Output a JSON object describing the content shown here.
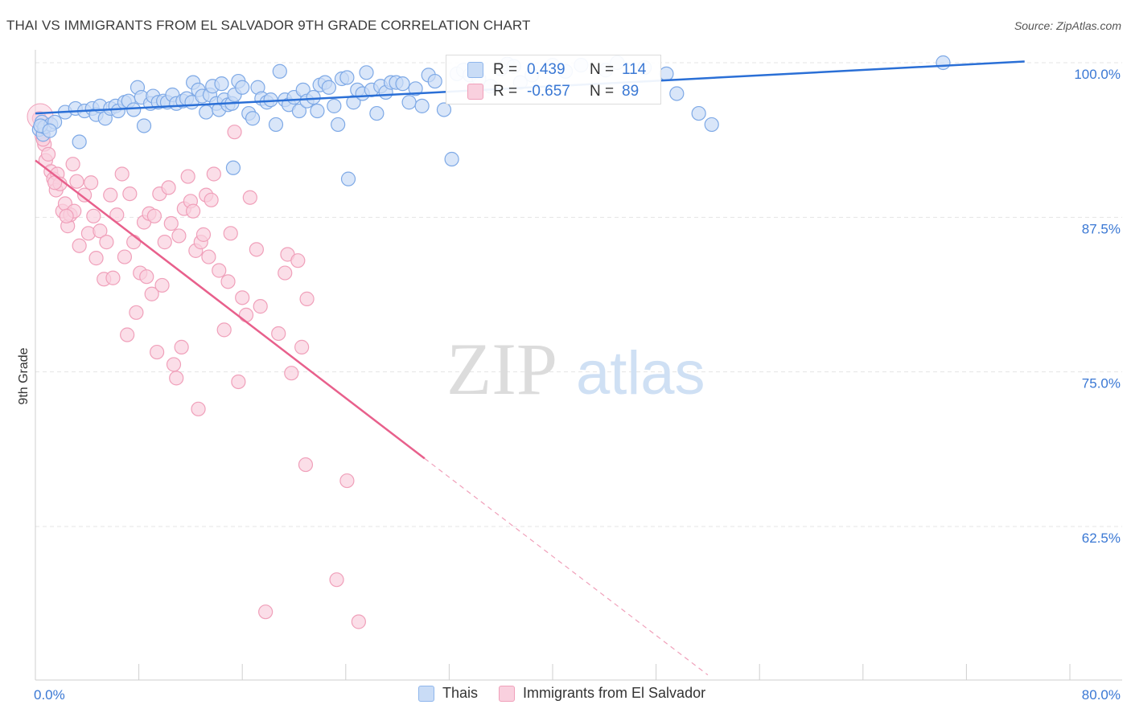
{
  "title": "THAI VS IMMIGRANTS FROM EL SALVADOR 9TH GRADE CORRELATION CHART",
  "source": "Source: ZipAtlas.com",
  "watermark": {
    "zip": "ZIP",
    "atlas": "atlas"
  },
  "stats": {
    "r_label": "R =",
    "n_label": "N =",
    "rows": [
      {
        "r": "0.439",
        "n": "114",
        "color": "#8fb6ec",
        "fill": "#c9dcf6",
        "text_color": "#3a78d4"
      },
      {
        "r": "-0.657",
        "n": "89",
        "color": "#f0a0ba",
        "fill": "#f9d0de",
        "text_color": "#3a78d4"
      }
    ]
  },
  "legend": [
    {
      "name": "Thais",
      "fill": "#c9dcf6",
      "stroke": "#8fb6ec"
    },
    {
      "name": "Immigrants from El Salvador",
      "fill": "#f9d0de",
      "stroke": "#f0a0ba"
    }
  ],
  "chart_data": {
    "type": "scatter",
    "title": "THAI VS IMMIGRANTS FROM EL SALVADOR 9TH GRADE CORRELATION CHART",
    "xlabel": "",
    "ylabel": "9th Grade",
    "xlim": [
      0,
      80
    ],
    "ylim": [
      50,
      101
    ],
    "x_tick_labels": [
      {
        "value": 0,
        "label": "0.0%"
      },
      {
        "value": 80,
        "label": "80.0%"
      }
    ],
    "y_tick_labels": [
      {
        "value": 100,
        "label": "100.0%"
      },
      {
        "value": 87.5,
        "label": "87.5%"
      },
      {
        "value": 75,
        "label": "75.0%"
      },
      {
        "value": 62.5,
        "label": "62.5%"
      }
    ],
    "grid": true,
    "legend_position": "bottom",
    "series": [
      {
        "name": "Thais",
        "color": "#6fa0e6",
        "fill": "#c9dcf6",
        "trend": {
          "x": [
            0,
            76.5
          ],
          "y": [
            95.9,
            100.1
          ],
          "color": "#2a6fd6"
        },
        "points": [
          [
            0.3,
            94.6
          ],
          [
            0.5,
            95.2
          ],
          [
            0.6,
            94.2
          ],
          [
            0.7,
            94.8
          ],
          [
            1.2,
            95.0
          ],
          [
            1.5,
            95.2
          ],
          [
            2.3,
            96.0
          ],
          [
            3.1,
            96.3
          ],
          [
            3.4,
            93.6
          ],
          [
            3.8,
            96.1
          ],
          [
            4.4,
            96.3
          ],
          [
            4.7,
            95.8
          ],
          [
            5.0,
            96.5
          ],
          [
            5.4,
            95.5
          ],
          [
            5.8,
            96.3
          ],
          [
            6.2,
            96.5
          ],
          [
            6.4,
            96.1
          ],
          [
            6.9,
            96.8
          ],
          [
            7.2,
            96.9
          ],
          [
            7.6,
            96.2
          ],
          [
            7.9,
            98.0
          ],
          [
            8.2,
            97.2
          ],
          [
            8.4,
            94.9
          ],
          [
            8.9,
            96.7
          ],
          [
            9.1,
            97.3
          ],
          [
            9.5,
            96.8
          ],
          [
            9.9,
            96.9
          ],
          [
            10.2,
            96.8
          ],
          [
            10.6,
            97.4
          ],
          [
            10.9,
            96.7
          ],
          [
            11.4,
            96.9
          ],
          [
            11.7,
            97.1
          ],
          [
            12.1,
            96.8
          ],
          [
            12.2,
            98.4
          ],
          [
            12.6,
            97.8
          ],
          [
            12.9,
            97.3
          ],
          [
            13.2,
            96.0
          ],
          [
            13.5,
            97.4
          ],
          [
            13.7,
            98.1
          ],
          [
            14.0,
            96.7
          ],
          [
            14.2,
            96.2
          ],
          [
            14.4,
            98.3
          ],
          [
            14.6,
            97.0
          ],
          [
            14.9,
            96.6
          ],
          [
            15.2,
            96.7
          ],
          [
            15.4,
            97.4
          ],
          [
            15.7,
            98.5
          ],
          [
            16.0,
            98.0
          ],
          [
            16.5,
            95.9
          ],
          [
            16.8,
            95.5
          ],
          [
            17.2,
            98.0
          ],
          [
            17.5,
            97.1
          ],
          [
            17.9,
            96.8
          ],
          [
            18.2,
            97.0
          ],
          [
            18.6,
            95.0
          ],
          [
            18.9,
            99.3
          ],
          [
            19.3,
            97.0
          ],
          [
            19.6,
            96.6
          ],
          [
            20.0,
            97.2
          ],
          [
            20.4,
            96.1
          ],
          [
            20.7,
            97.8
          ],
          [
            21.0,
            96.9
          ],
          [
            21.5,
            97.2
          ],
          [
            21.8,
            96.1
          ],
          [
            22.0,
            98.2
          ],
          [
            22.4,
            98.4
          ],
          [
            22.7,
            98.0
          ],
          [
            23.1,
            96.5
          ],
          [
            23.4,
            95.0
          ],
          [
            23.7,
            98.7
          ],
          [
            24.1,
            98.8
          ],
          [
            24.6,
            96.8
          ],
          [
            24.9,
            97.8
          ],
          [
            25.3,
            97.5
          ],
          [
            25.6,
            99.2
          ],
          [
            26.0,
            97.8
          ],
          [
            26.4,
            95.9
          ],
          [
            26.7,
            98.1
          ],
          [
            27.1,
            97.6
          ],
          [
            27.5,
            98.4
          ],
          [
            27.9,
            98.4
          ],
          [
            28.4,
            98.3
          ],
          [
            28.9,
            96.8
          ],
          [
            29.4,
            97.9
          ],
          [
            29.9,
            96.5
          ],
          [
            30.4,
            99.0
          ],
          [
            30.9,
            98.5
          ],
          [
            31.6,
            96.2
          ],
          [
            32.2,
            92.2
          ],
          [
            32.6,
            99.1
          ],
          [
            33.1,
            99.4
          ],
          [
            33.6,
            99.0
          ],
          [
            34.3,
            98.7
          ],
          [
            35.2,
            98.1
          ],
          [
            36.0,
            99.5
          ],
          [
            36.5,
            99.9
          ],
          [
            37.0,
            99.7
          ],
          [
            37.5,
            98.4
          ],
          [
            38.4,
            99.0
          ],
          [
            40.0,
            99.8
          ],
          [
            41.0,
            99.3
          ],
          [
            42.2,
            99.8
          ],
          [
            44.1,
            99.4
          ],
          [
            45.0,
            100.0
          ],
          [
            47.1,
            99.6
          ],
          [
            48.8,
            99.1
          ],
          [
            49.6,
            97.5
          ],
          [
            51.3,
            95.9
          ],
          [
            52.3,
            95.0
          ],
          [
            70.2,
            100.0
          ],
          [
            0.4,
            94.9
          ],
          [
            1.1,
            94.5
          ],
          [
            15.3,
            91.5
          ],
          [
            24.2,
            90.6
          ]
        ]
      },
      {
        "name": "Immigrants from El Salvador",
        "color": "#ee7fa3",
        "fill": "#f9d0de",
        "trend": {
          "x": [
            0,
            30.1
          ],
          "y": [
            92.1,
            68.0
          ],
          "color": "#e8608c"
        },
        "trend_extension": {
          "x": [
            30.1,
            52
          ],
          "y": [
            68.0,
            50.5
          ]
        },
        "points": [
          [
            0.3,
            95.5
          ],
          [
            0.5,
            94.1
          ],
          [
            0.7,
            93.4
          ],
          [
            0.8,
            92.1
          ],
          [
            1.0,
            92.6
          ],
          [
            1.2,
            91.2
          ],
          [
            1.4,
            90.6
          ],
          [
            1.6,
            89.7
          ],
          [
            1.7,
            91.0
          ],
          [
            1.9,
            90.2
          ],
          [
            2.1,
            88.0
          ],
          [
            2.3,
            88.6
          ],
          [
            2.5,
            86.8
          ],
          [
            2.7,
            87.7
          ],
          [
            2.9,
            91.8
          ],
          [
            3.0,
            88.0
          ],
          [
            3.2,
            90.4
          ],
          [
            3.4,
            85.2
          ],
          [
            3.8,
            89.3
          ],
          [
            4.1,
            86.2
          ],
          [
            4.3,
            90.3
          ],
          [
            4.5,
            87.6
          ],
          [
            4.7,
            84.2
          ],
          [
            5.0,
            86.4
          ],
          [
            5.3,
            82.5
          ],
          [
            5.5,
            85.5
          ],
          [
            5.8,
            89.3
          ],
          [
            6.0,
            82.6
          ],
          [
            6.3,
            87.7
          ],
          [
            6.7,
            91.0
          ],
          [
            6.9,
            84.3
          ],
          [
            7.1,
            78.0
          ],
          [
            7.3,
            89.4
          ],
          [
            7.6,
            85.5
          ],
          [
            7.8,
            79.8
          ],
          [
            8.1,
            83.0
          ],
          [
            8.4,
            87.1
          ],
          [
            8.6,
            82.7
          ],
          [
            8.8,
            87.8
          ],
          [
            9.0,
            81.3
          ],
          [
            9.2,
            87.6
          ],
          [
            9.4,
            76.6
          ],
          [
            9.6,
            89.4
          ],
          [
            9.8,
            82.0
          ],
          [
            10.0,
            85.5
          ],
          [
            10.3,
            89.9
          ],
          [
            10.5,
            87.0
          ],
          [
            10.7,
            75.6
          ],
          [
            10.9,
            74.5
          ],
          [
            11.1,
            86.0
          ],
          [
            11.3,
            77.0
          ],
          [
            11.5,
            88.2
          ],
          [
            11.8,
            90.8
          ],
          [
            12.0,
            88.8
          ],
          [
            12.2,
            88.0
          ],
          [
            12.4,
            84.8
          ],
          [
            12.6,
            72.0
          ],
          [
            12.8,
            85.5
          ],
          [
            13.0,
            86.1
          ],
          [
            13.2,
            89.3
          ],
          [
            13.4,
            84.3
          ],
          [
            13.6,
            88.9
          ],
          [
            13.8,
            91.0
          ],
          [
            14.2,
            83.2
          ],
          [
            14.6,
            78.4
          ],
          [
            14.9,
            82.3
          ],
          [
            15.1,
            86.2
          ],
          [
            15.4,
            94.4
          ],
          [
            15.7,
            74.2
          ],
          [
            16.0,
            81.0
          ],
          [
            16.3,
            79.6
          ],
          [
            16.6,
            89.1
          ],
          [
            17.1,
            84.9
          ],
          [
            17.4,
            80.3
          ],
          [
            17.8,
            55.6
          ],
          [
            18.8,
            78.1
          ],
          [
            19.3,
            83.0
          ],
          [
            19.5,
            84.5
          ],
          [
            19.8,
            74.9
          ],
          [
            20.3,
            84.0
          ],
          [
            20.6,
            77.0
          ],
          [
            20.9,
            67.5
          ],
          [
            21.0,
            80.9
          ],
          [
            23.3,
            58.2
          ],
          [
            24.1,
            66.2
          ],
          [
            25.0,
            54.8
          ],
          [
            1.5,
            90.3
          ],
          [
            2.4,
            87.6
          ],
          [
            0.6,
            93.8
          ]
        ]
      }
    ]
  }
}
